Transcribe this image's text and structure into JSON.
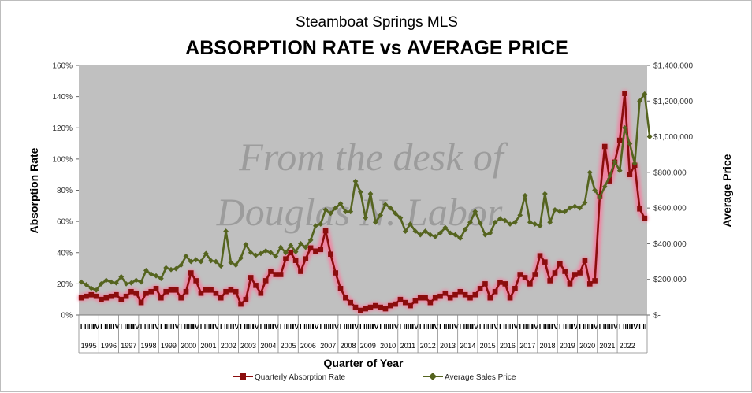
{
  "chart_data": {
    "type": "line",
    "subtitle": "Steamboat Springs MLS",
    "title": "ABSORPTION RATE vs AVERAGE PRICE",
    "xlabel": "Quarter of Year",
    "ylabel_left": "Absorption Rate",
    "ylabel_right": "Average Price",
    "y_left_range": [
      0,
      160
    ],
    "y_left_ticks": [
      "0%",
      "20%",
      "40%",
      "60%",
      "80%",
      "100%",
      "120%",
      "140%",
      "160%"
    ],
    "y_right_range": [
      0,
      1400000
    ],
    "y_right_ticks": [
      "$-",
      "$200,000",
      "$400,000",
      "$600,000",
      "$800,000",
      "$1,000,000",
      "$1,200,000",
      "$1,400,000"
    ],
    "quarter_labels": [
      "I",
      "II",
      "III",
      "IV"
    ],
    "years": [
      "1995",
      "1996",
      "1997",
      "1998",
      "1999",
      "2000",
      "2001",
      "2002",
      "2003",
      "2004",
      "2005",
      "2006",
      "2007",
      "2008",
      "2009",
      "2010",
      "2011",
      "2012",
      "2013",
      "2014",
      "2015",
      "2016",
      "2017",
      "2018",
      "2019",
      "2020",
      "2021",
      "2022"
    ],
    "watermark": [
      "From the desk of",
      "Douglas N. Labor"
    ],
    "grid": false,
    "legend_position": "bottom",
    "series": [
      {
        "name": "Quarterly Absorption Rate",
        "axis": "left",
        "color": "#8b0d0d",
        "glow": "#ff6f98",
        "values": [
          11,
          12,
          13,
          12,
          10,
          11,
          12,
          13,
          10,
          12,
          15,
          14,
          8,
          14,
          15,
          17,
          11,
          15,
          16,
          16,
          11,
          15,
          27,
          22,
          14,
          16,
          16,
          14,
          11,
          15,
          16,
          15,
          7,
          10,
          24,
          19,
          14,
          22,
          28,
          26,
          26,
          36,
          40,
          35,
          28,
          36,
          43,
          41,
          42,
          54,
          39,
          27,
          17,
          11,
          8,
          5,
          3,
          4,
          5,
          6,
          5,
          4,
          6,
          7,
          10,
          8,
          6,
          9,
          11,
          11,
          8,
          11,
          12,
          14,
          11,
          13,
          15,
          13,
          11,
          13,
          17,
          20,
          11,
          15,
          21,
          20,
          11,
          17,
          26,
          24,
          20,
          26,
          38,
          34,
          22,
          27,
          33,
          28,
          20,
          26,
          27,
          35,
          20,
          22,
          76,
          108,
          86,
          98,
          112,
          142,
          90,
          96,
          68,
          62
        ]
      },
      {
        "name": "Average Sales Price",
        "axis": "right",
        "color": "#55641f",
        "values": [
          185000,
          170000,
          150000,
          140000,
          175000,
          195000,
          185000,
          180000,
          215000,
          175000,
          180000,
          195000,
          185000,
          250000,
          230000,
          220000,
          205000,
          265000,
          255000,
          260000,
          280000,
          330000,
          300000,
          310000,
          300000,
          345000,
          305000,
          300000,
          275000,
          470000,
          295000,
          280000,
          320000,
          395000,
          350000,
          335000,
          345000,
          360000,
          350000,
          330000,
          380000,
          350000,
          390000,
          355000,
          400000,
          380000,
          420000,
          500000,
          510000,
          590000,
          570000,
          600000,
          625000,
          580000,
          580000,
          750000,
          690000,
          545000,
          680000,
          520000,
          560000,
          620000,
          600000,
          570000,
          545000,
          470000,
          510000,
          470000,
          450000,
          470000,
          450000,
          440000,
          460000,
          490000,
          460000,
          450000,
          430000,
          480000,
          520000,
          580000,
          515000,
          450000,
          460000,
          520000,
          540000,
          530000,
          510000,
          520000,
          560000,
          670000,
          520000,
          510000,
          500000,
          680000,
          520000,
          590000,
          580000,
          580000,
          600000,
          610000,
          600000,
          630000,
          800000,
          700000,
          660000,
          720000,
          780000,
          860000,
          810000,
          1050000,
          960000,
          850000,
          1200000,
          1240000,
          1000000
        ]
      }
    ]
  }
}
